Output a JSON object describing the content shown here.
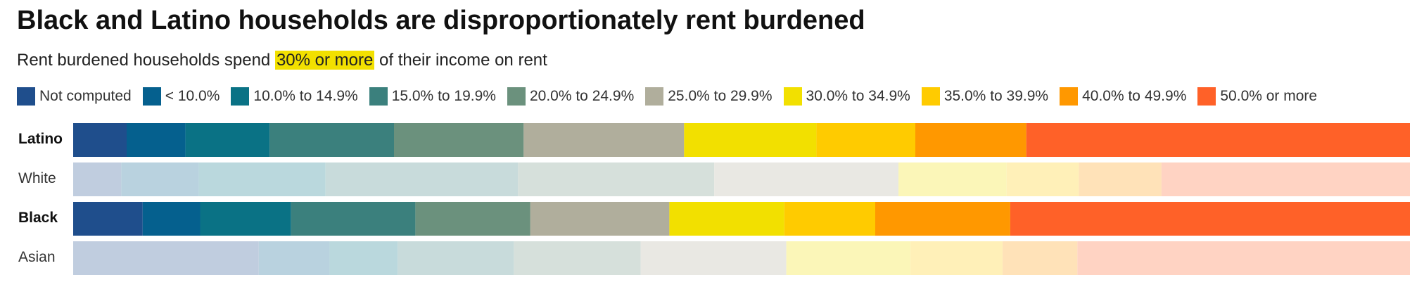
{
  "title": "Black and Latino households are disproportionately rent burdened",
  "subtitle": {
    "before": "Rent burdened households spend ",
    "highlight": "30% or more",
    "after": " of their income on rent"
  },
  "chart_data": {
    "type": "bar",
    "orientation": "horizontal",
    "stacked": true,
    "normalized_to_100": true,
    "grid": false,
    "legend_position": "top",
    "categories": [
      "Latino",
      "White",
      "Black",
      "Asian"
    ],
    "category_emphasis": [
      true,
      false,
      true,
      false
    ],
    "series": [
      {
        "name": "Not computed",
        "color": "#1f4e8c",
        "values": [
          4.0,
          3.6,
          5.2,
          13.9
        ]
      },
      {
        "name": "< 10.0%",
        "color": "#05608e",
        "values": [
          4.4,
          5.8,
          4.3,
          5.3
        ]
      },
      {
        "name": "10.0% to 14.9%",
        "color": "#0a7285",
        "values": [
          6.3,
          9.5,
          6.8,
          5.1
        ]
      },
      {
        "name": "15.0% to 19.9%",
        "color": "#3b807d",
        "values": [
          9.3,
          14.4,
          9.3,
          8.7
        ]
      },
      {
        "name": "20.0% to 24.9%",
        "color": "#6b917d",
        "values": [
          9.7,
          14.7,
          8.6,
          9.5
        ]
      },
      {
        "name": "25.0% to 29.9%",
        "color": "#b0ae9c",
        "values": [
          12.0,
          13.8,
          10.4,
          10.9
        ]
      },
      {
        "name": "30.0% to 34.9%",
        "color": "#f2e000",
        "values": [
          9.9,
          8.1,
          8.6,
          9.3
        ]
      },
      {
        "name": "35.0% to 39.9%",
        "color": "#ffcb00",
        "values": [
          7.4,
          5.4,
          6.8,
          6.9
        ]
      },
      {
        "name": "40.0% to 49.9%",
        "color": "#ff9800",
        "values": [
          8.3,
          6.2,
          10.1,
          5.6
        ]
      },
      {
        "name": "50.0% or more",
        "color": "#ff6128",
        "values": [
          28.7,
          18.6,
          29.9,
          24.9
        ]
      }
    ]
  }
}
